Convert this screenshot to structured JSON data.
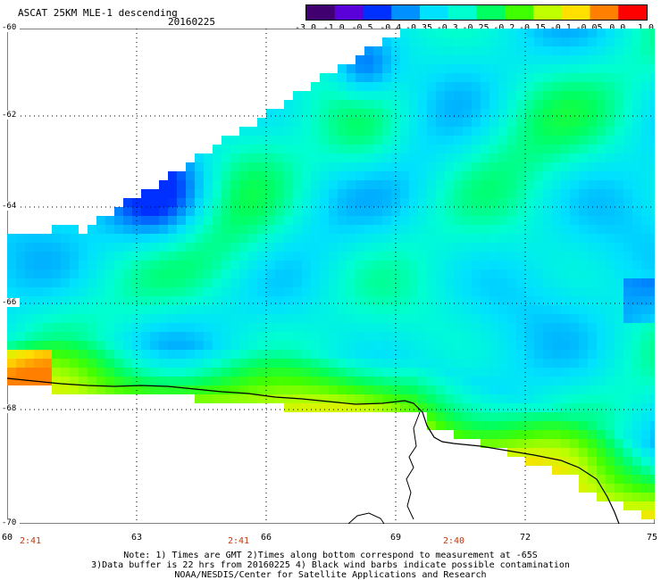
{
  "header": {
    "title": "ASCAT 25KM MLE-1 descending",
    "date": "20160225"
  },
  "colorbar": {
    "labels": [
      "-3.0",
      "-1.0",
      "-0.5",
      "-0.4",
      "-0.35",
      "-0.3",
      "-0.25",
      "-0.2",
      "-0.15",
      "-0.1",
      "-0.05",
      "0.0",
      "1.0"
    ],
    "colors": [
      "#000000",
      "#400070",
      "#5a00d8",
      "#0030ff",
      "#0090ff",
      "#00e0ff",
      "#00ffd0",
      "#00ff60",
      "#40ff00",
      "#c0ff00",
      "#ffe000",
      "#ff8000",
      "#ff0000"
    ]
  },
  "axes": {
    "lat_labels": [
      "-60",
      "-62",
      "-64",
      "-66",
      "-68",
      "-70"
    ],
    "lon_labels": [
      "60",
      "63",
      "66",
      "69",
      "72",
      "75"
    ]
  },
  "times": [
    "2:41",
    "2:41",
    "2:40"
  ],
  "notes": {
    "line1": "Note: 1) Times are GMT 2)Times along bottom correspond to measurement at -65S",
    "line2": "3)Data buffer is 22 hrs from 20160225 4) Black wind barbs indicate possible contamination",
    "line3": "NOAA/NESDIS/Center for Satellite Applications and Research"
  }
}
